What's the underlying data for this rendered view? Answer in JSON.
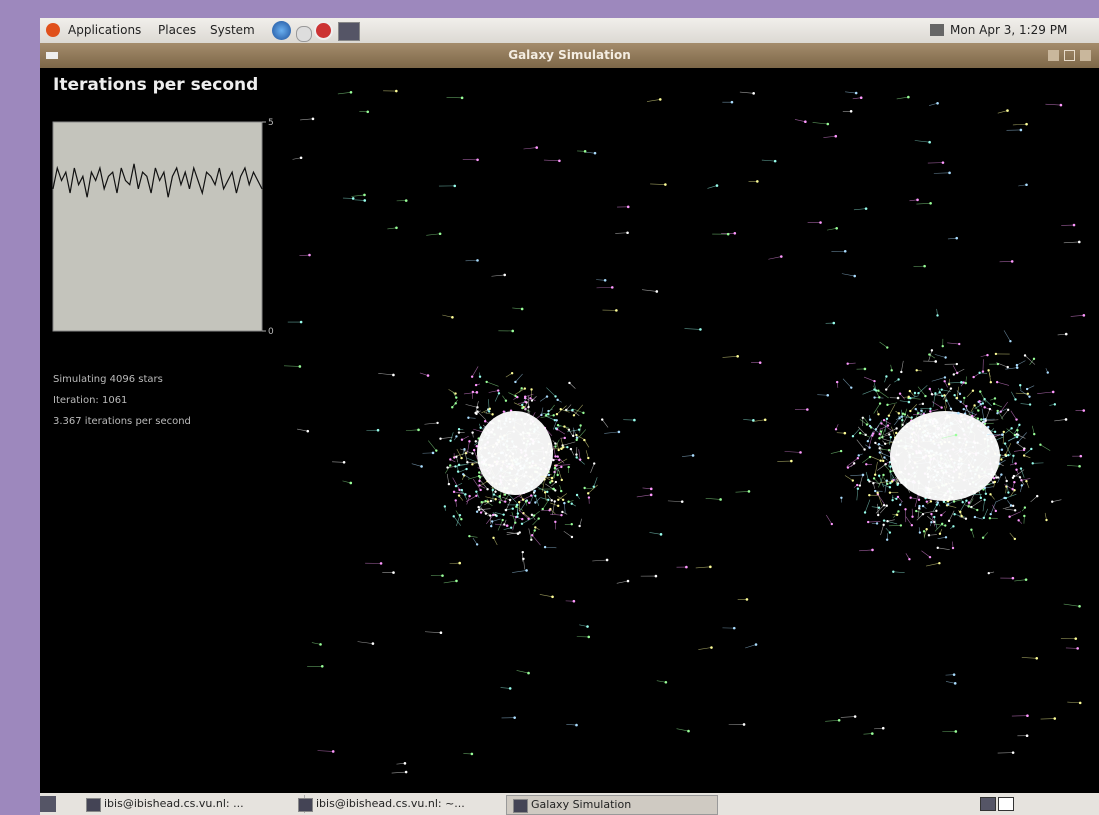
{
  "top_panel": {
    "menus": [
      "Applications",
      "Places",
      "System"
    ],
    "clock": "Mon Apr 3, 1:29 PM"
  },
  "window": {
    "title": "Galaxy Simulation"
  },
  "graph": {
    "title": "Iterations per second",
    "ylim": [
      0,
      5
    ],
    "yticks": [
      0,
      5
    ],
    "values": [
      3.4,
      3.9,
      3.6,
      3.8,
      3.3,
      3.9,
      3.5,
      3.7,
      3.2,
      3.8,
      3.6,
      3.9,
      3.4,
      3.7,
      3.8,
      3.3,
      3.9,
      3.6,
      3.5,
      4.0,
      3.4,
      3.8,
      3.7,
      3.3,
      3.9,
      3.6,
      3.8,
      3.2,
      3.7,
      3.9,
      3.5,
      3.8,
      3.4,
      3.9,
      3.6,
      3.3,
      3.8,
      3.7,
      3.5,
      3.9,
      3.4,
      3.6,
      3.8,
      3.3,
      3.7,
      3.9,
      3.5,
      3.8,
      3.6,
      3.4
    ]
  },
  "stats": [
    "Simulating 4096 stars",
    "Iteration: 1061",
    "3.367 iterations per second"
  ],
  "taskbar": [
    "ibis@ibishead.cs.vu.nl: ...",
    "ibis@ibishead.cs.vu.nl: ~...",
    "Galaxy Simulation"
  ]
}
